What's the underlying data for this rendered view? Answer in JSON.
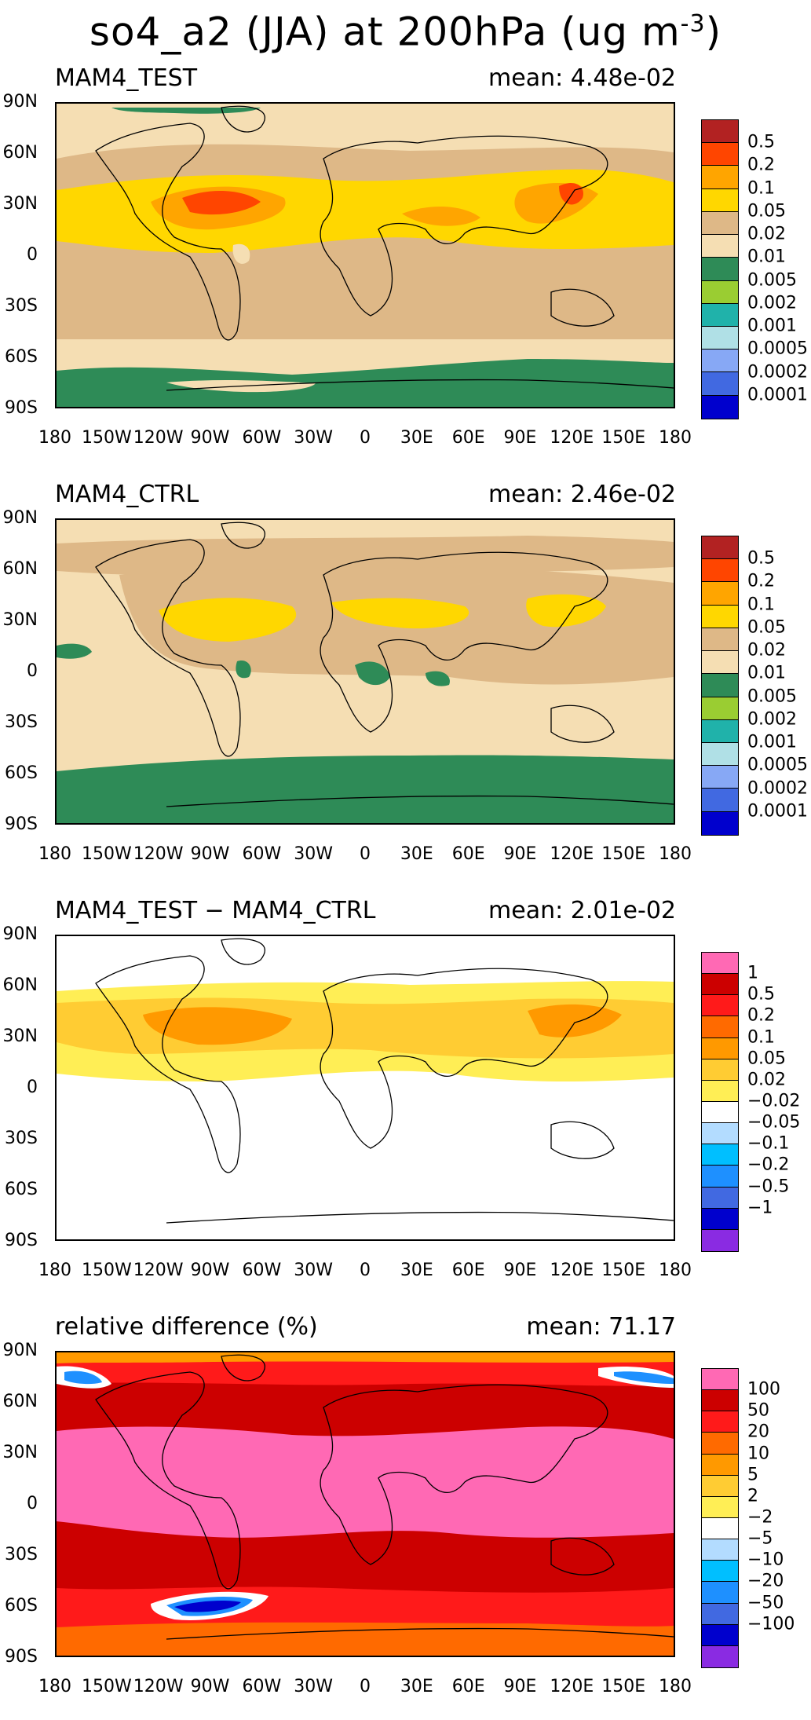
{
  "title": {
    "main": "so4_a2 (JJA) at 200hPa (ug m",
    "sup": "-3",
    "close": ")"
  },
  "lat_labels": [
    "90N",
    "60N",
    "30N",
    "0",
    "30S",
    "60S",
    "90S"
  ],
  "lon_labels": [
    "180",
    "150W",
    "120W",
    "90W",
    "60W",
    "30W",
    "0",
    "30E",
    "60E",
    "90E",
    "120E",
    "150E",
    "180"
  ],
  "panels": [
    {
      "title": "MAM4_TEST",
      "mean": "mean: 4.48e-02",
      "colorbar": {
        "colors": [
          "#b22222",
          "#ff4500",
          "#ffa500",
          "#ffd700",
          "#deb887",
          "#f5deb3",
          "#2e8b57",
          "#9acd32",
          "#20b2aa",
          "#b0e0e6",
          "#87a8f5",
          "#4169e1",
          "#0000cd"
        ],
        "labels": [
          "0.5",
          "0.2",
          "0.1",
          "0.05",
          "0.02",
          "0.01",
          "0.005",
          "0.002",
          "0.001",
          "0.0005",
          "0.0002",
          "0.0001"
        ]
      }
    },
    {
      "title": "MAM4_CTRL",
      "mean": "mean: 2.46e-02",
      "colorbar": {
        "colors": [
          "#b22222",
          "#ff4500",
          "#ffa500",
          "#ffd700",
          "#deb887",
          "#f5deb3",
          "#2e8b57",
          "#9acd32",
          "#20b2aa",
          "#b0e0e6",
          "#87a8f5",
          "#4169e1",
          "#0000cd"
        ],
        "labels": [
          "0.5",
          "0.2",
          "0.1",
          "0.05",
          "0.02",
          "0.01",
          "0.005",
          "0.002",
          "0.001",
          "0.0005",
          "0.0002",
          "0.0001"
        ]
      }
    },
    {
      "title": "MAM4_TEST − MAM4_CTRL",
      "mean": "mean: 2.01e-02",
      "colorbar": {
        "colors": [
          "#ff69b4",
          "#cc0000",
          "#ff1a1a",
          "#ff6a00",
          "#ff9900",
          "#ffcc33",
          "#ffee55",
          "#ffffff",
          "#b3dcff",
          "#00bfff",
          "#1e90ff",
          "#4169e1",
          "#0000cd",
          "#8a2be2"
        ],
        "labels": [
          "1",
          "0.5",
          "0.2",
          "0.1",
          "0.05",
          "0.02",
          "−0.02",
          "−0.05",
          "−0.1",
          "−0.2",
          "−0.5",
          "−1"
        ]
      }
    },
    {
      "title": "relative difference (%)",
      "mean": "mean: 71.17",
      "colorbar": {
        "colors": [
          "#ff69b4",
          "#cc0000",
          "#ff1a1a",
          "#ff6a00",
          "#ff9900",
          "#ffcc33",
          "#ffee55",
          "#ffffff",
          "#b3dcff",
          "#00bfff",
          "#1e90ff",
          "#4169e1",
          "#0000cd",
          "#8a2be2"
        ],
        "labels": [
          "100",
          "50",
          "20",
          "10",
          "5",
          "2",
          "−2",
          "−5",
          "−10",
          "−20",
          "−50",
          "−100"
        ]
      }
    }
  ]
}
